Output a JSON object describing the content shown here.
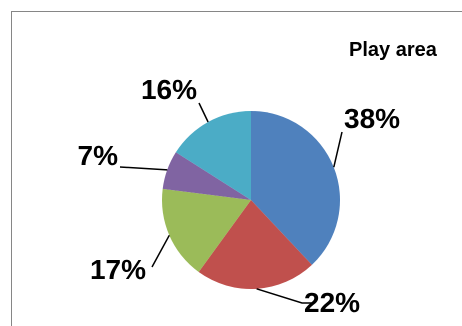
{
  "chart_data": {
    "type": "pie",
    "title": "Play area",
    "slices": [
      {
        "value": 38,
        "label": "38%",
        "color": "#4F81BD"
      },
      {
        "value": 22,
        "label": "22%",
        "color": "#C0504D"
      },
      {
        "value": 17,
        "label": "17%",
        "color": "#9BBB59"
      },
      {
        "value": 7,
        "label": "7%",
        "color": "#8064A2"
      },
      {
        "value": 16,
        "label": "16%",
        "color": "#4BACC6"
      }
    ],
    "start_angle_deg": 0,
    "direction": "clockwise",
    "data_labels": "outside-with-leader-lines"
  }
}
